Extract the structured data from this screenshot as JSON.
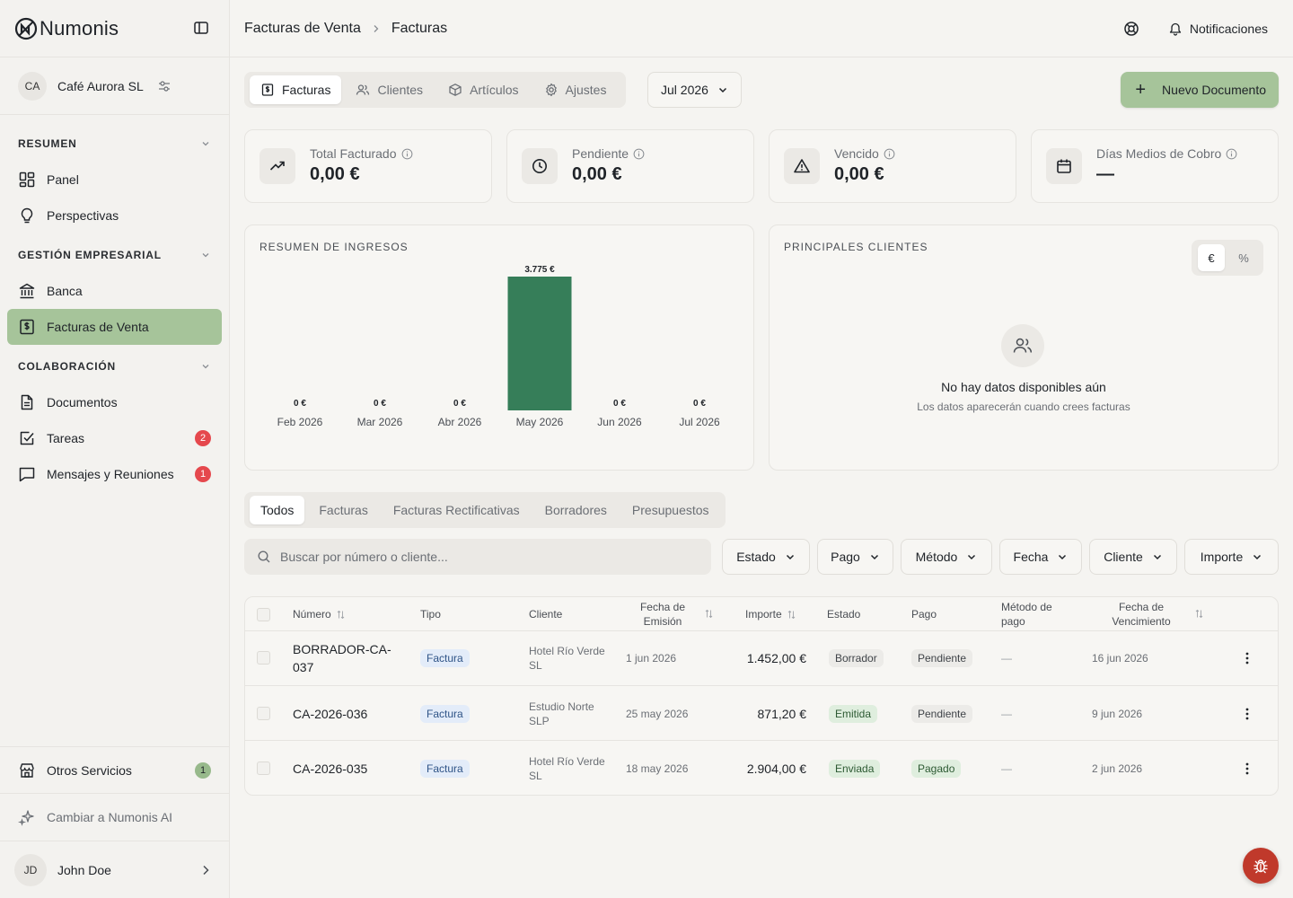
{
  "app": {
    "brand": "Numonis"
  },
  "company": {
    "initials": "CA",
    "name": "Café Aurora SL"
  },
  "sidebar": {
    "sections": [
      {
        "title": "RESUMEN",
        "items": [
          {
            "label": "Panel"
          },
          {
            "label": "Perspectivas"
          }
        ]
      },
      {
        "title": "GESTIÓN EMPRESARIAL",
        "items": [
          {
            "label": "Banca"
          },
          {
            "label": "Facturas de Venta"
          }
        ]
      },
      {
        "title": "COLABORACIÓN",
        "items": [
          {
            "label": "Documentos"
          },
          {
            "label": "Tareas",
            "badge": "2"
          },
          {
            "label": "Mensajes y Reuniones",
            "badge": "1"
          }
        ]
      }
    ],
    "other_services": {
      "label": "Otros Servicios",
      "badge": "1"
    },
    "upgrade": "Cambiar a Numonis AI",
    "user": {
      "initials": "JD",
      "name": "John Doe"
    }
  },
  "header": {
    "breadcrumb": [
      "Facturas de Venta",
      "Facturas"
    ],
    "notifications": "Notificaciones"
  },
  "toolbar": {
    "tabs": [
      {
        "label": "Facturas",
        "icon": "invoice-icon"
      },
      {
        "label": "Clientes",
        "icon": "users-icon"
      },
      {
        "label": "Artículos",
        "icon": "box-icon"
      },
      {
        "label": "Ajustes",
        "icon": "gear-icon"
      }
    ],
    "month": "Jul 2026",
    "new_document": "Nuevo Documento"
  },
  "kpis": [
    {
      "label": "Total Facturado",
      "value": "0,00 €",
      "icon": "trending-up-icon"
    },
    {
      "label": "Pendiente",
      "value": "0,00 €",
      "icon": "clock-icon"
    },
    {
      "label": "Vencido",
      "value": "0,00 €",
      "icon": "warning-icon"
    },
    {
      "label": "Días Medios de Cobro",
      "value": "—",
      "icon": "calendar-icon"
    }
  ],
  "income_card": {
    "title": "RESUMEN DE INGRESOS"
  },
  "chart_data": {
    "type": "bar",
    "title": "RESUMEN DE INGRESOS",
    "categories": [
      "Feb 2026",
      "Mar 2026",
      "Abr 2026",
      "May 2026",
      "Jun 2026",
      "Jul 2026"
    ],
    "values": [
      0,
      0,
      0,
      3775,
      0,
      0
    ],
    "data_labels": [
      "0 €",
      "0 €",
      "0 €",
      "3.775 €",
      "0 €",
      "0 €"
    ],
    "ylim": [
      0,
      3775
    ],
    "grid": false,
    "color": "#367e59"
  },
  "clients_card": {
    "title": "PRINCIPALES CLIENTES",
    "toggle": [
      "€",
      "%"
    ],
    "empty_title": "No hay datos disponibles aún",
    "empty_sub": "Los datos aparecerán cuando crees facturas"
  },
  "doc_tabs": [
    "Todos",
    "Facturas",
    "Facturas Rectificativas",
    "Borradores",
    "Presupuestos"
  ],
  "search": {
    "placeholder": "Buscar por número o cliente..."
  },
  "filters": [
    "Estado",
    "Pago",
    "Método",
    "Fecha",
    "Cliente",
    "Importe"
  ],
  "table": {
    "headers": {
      "numero": "Número",
      "tipo": "Tipo",
      "cliente": "Cliente",
      "emision": "Fecha de Emisión",
      "importe": "Importe",
      "estado": "Estado",
      "pago": "Pago",
      "metodo": "Método de pago",
      "vencimiento": "Fecha de Vencimiento"
    },
    "rows": [
      {
        "numero": "BORRADOR-CA-037",
        "tipo": "Factura",
        "cliente": "Hotel Río Verde SL",
        "emision": "1 jun 2026",
        "importe": "1.452,00 €",
        "estado": "Borrador",
        "pago": "Pendiente",
        "metodo": "—",
        "vencimiento": "16 jun 2026"
      },
      {
        "numero": "CA-2026-036",
        "tipo": "Factura",
        "cliente": "Estudio Norte SLP",
        "emision": "25 may 2026",
        "importe": "871,20 €",
        "estado": "Emitida",
        "pago": "Pendiente",
        "metodo": "—",
        "vencimiento": "9 jun 2026"
      },
      {
        "numero": "CA-2026-035",
        "tipo": "Factura",
        "cliente": "Hotel Río Verde SL",
        "emision": "18 may 2026",
        "importe": "2.904,00 €",
        "estado": "Enviada",
        "pago": "Pagado",
        "metodo": "—",
        "vencimiento": "2 jun 2026"
      }
    ]
  },
  "colors": {
    "accent": "#a6c49a",
    "bar": "#367e59",
    "danger": "#e5484d"
  }
}
